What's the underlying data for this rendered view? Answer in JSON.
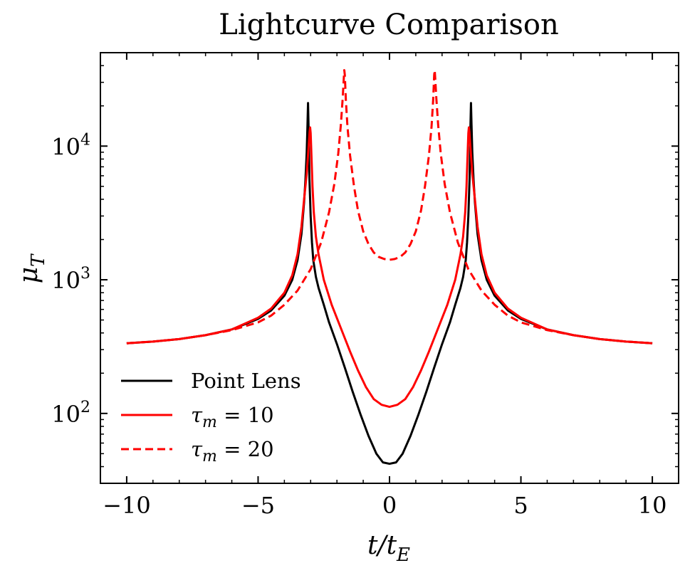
{
  "chart_data": {
    "type": "line",
    "title": "Lightcurve Comparison",
    "xlabel": "t/tE",
    "xlabel_main": "t/t",
    "xlabel_sub": "E",
    "ylabel": "μT",
    "ylabel_main": "μ",
    "ylabel_sub": "T",
    "xlim": [
      -11,
      11
    ],
    "ylim": [
      30,
      50000
    ],
    "yscale": "log",
    "grid": false,
    "legend_position": "lower-left",
    "x_ticks": [
      -10,
      -5,
      0,
      5,
      10
    ],
    "x_tick_labels": [
      "−10",
      "−5",
      "0",
      "5",
      "10"
    ],
    "y_ticks": [
      100,
      1000,
      10000
    ],
    "y_tick_labels": [
      {
        "base": "10",
        "exp": "2"
      },
      {
        "base": "10",
        "exp": "3"
      },
      {
        "base": "10",
        "exp": "4"
      }
    ],
    "series": [
      {
        "name": "Point Lens",
        "legend_label": "Point Lens",
        "color": "#000000",
        "dash": "solid",
        "x": [
          -10,
          -9,
          -8,
          -7,
          -6,
          -5,
          -4.5,
          -4,
          -3.7,
          -3.5,
          -3.35,
          -3.25,
          -3.2,
          -3.15,
          -3.12,
          -3.1,
          -3.08,
          -3.05,
          -3.0,
          -2.95,
          -2.9,
          -2.8,
          -2.7,
          -2.5,
          -2.3,
          -2.0,
          -1.7,
          -1.4,
          -1.1,
          -0.8,
          -0.5,
          -0.25,
          0,
          0.25,
          0.5,
          0.8,
          1.1,
          1.4,
          1.7,
          2.0,
          2.3,
          2.5,
          2.7,
          2.8,
          2.9,
          2.95,
          3.0,
          3.05,
          3.08,
          3.1,
          3.12,
          3.15,
          3.2,
          3.25,
          3.35,
          3.5,
          3.7,
          4,
          4.5,
          5,
          6,
          7,
          8,
          9,
          10
        ],
        "y": [
          335,
          345,
          360,
          385,
          425,
          510,
          590,
          760,
          1000,
          1400,
          2200,
          3800,
          5500,
          9000,
          14500,
          21000,
          14000,
          6000,
          3000,
          1900,
          1400,
          1050,
          870,
          650,
          480,
          330,
          220,
          145,
          98,
          68,
          50,
          43,
          42,
          43,
          50,
          68,
          98,
          145,
          220,
          330,
          480,
          650,
          870,
          1050,
          1400,
          1900,
          3000,
          6000,
          14000,
          21000,
          14500,
          9000,
          5500,
          3800,
          2200,
          1400,
          1000,
          760,
          590,
          510,
          425,
          385,
          360,
          345,
          335
        ]
      },
      {
        "name": "τm = 10",
        "legend_label_main": "τ",
        "legend_label_sub": "m",
        "legend_label_rest": " = 10",
        "color": "#ff0000",
        "dash": "solid",
        "x": [
          -10,
          -9,
          -8,
          -7,
          -6,
          -5,
          -4.5,
          -4,
          -3.7,
          -3.5,
          -3.35,
          -3.25,
          -3.15,
          -3.08,
          -3.04,
          -3.02,
          -3.0,
          -2.97,
          -2.93,
          -2.88,
          -2.8,
          -2.7,
          -2.5,
          -2.2,
          -1.8,
          -1.5,
          -1.2,
          -0.9,
          -0.6,
          -0.3,
          0,
          0.3,
          0.6,
          0.9,
          1.2,
          1.5,
          1.8,
          2.2,
          2.5,
          2.7,
          2.8,
          2.88,
          2.93,
          2.97,
          3.0,
          3.02,
          3.04,
          3.08,
          3.15,
          3.25,
          3.35,
          3.5,
          3.7,
          4,
          4.5,
          5,
          6,
          7,
          8,
          9,
          10
        ],
        "y": [
          335,
          345,
          360,
          385,
          425,
          520,
          610,
          800,
          1080,
          1550,
          2500,
          4000,
          6200,
          9800,
          12800,
          13800,
          12500,
          8500,
          5000,
          3200,
          2100,
          1550,
          1000,
          650,
          410,
          290,
          210,
          158,
          128,
          116,
          112,
          116,
          128,
          158,
          210,
          290,
          410,
          650,
          1000,
          1550,
          2100,
          3200,
          5000,
          8500,
          12500,
          13800,
          12800,
          9800,
          6200,
          4000,
          2500,
          1550,
          1080,
          800,
          610,
          520,
          425,
          385,
          360,
          345,
          335
        ]
      },
      {
        "name": "τm = 20",
        "legend_label_main": "τ",
        "legend_label_sub": "m",
        "legend_label_rest": " = 20",
        "color": "#ff0000",
        "dash": "dashed",
        "x": [
          -10,
          -9,
          -8,
          -7,
          -6,
          -5,
          -4.5,
          -4,
          -3.5,
          -3.0,
          -2.6,
          -2.3,
          -2.1,
          -1.95,
          -1.85,
          -1.78,
          -1.74,
          -1.72,
          -1.7,
          -1.66,
          -1.6,
          -1.5,
          -1.35,
          -1.2,
          -1.0,
          -0.8,
          -0.6,
          -0.4,
          -0.2,
          0,
          0.2,
          0.4,
          0.6,
          0.8,
          1.0,
          1.2,
          1.35,
          1.5,
          1.6,
          1.66,
          1.7,
          1.72,
          1.74,
          1.78,
          1.85,
          1.95,
          2.1,
          2.3,
          2.6,
          3.0,
          3.5,
          4,
          4.5,
          5,
          6,
          7,
          8,
          9,
          10
        ],
        "y": [
          335,
          345,
          360,
          385,
          420,
          480,
          540,
          650,
          830,
          1200,
          1900,
          3200,
          5200,
          8800,
          14500,
          23000,
          32000,
          37000,
          34000,
          22000,
          14000,
          8500,
          5000,
          3300,
          2300,
          1850,
          1600,
          1480,
          1430,
          1410,
          1430,
          1480,
          1600,
          1850,
          2300,
          3300,
          5000,
          8500,
          14000,
          22000,
          34000,
          37000,
          32000,
          23000,
          14500,
          8800,
          5200,
          3200,
          1900,
          1200,
          830,
          650,
          540,
          480,
          420,
          385,
          360,
          345,
          335
        ]
      }
    ]
  }
}
